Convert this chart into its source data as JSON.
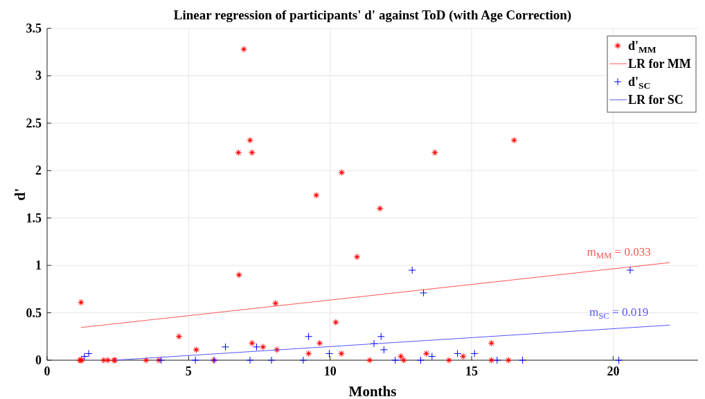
{
  "chart_data": {
    "type": "scatter",
    "title": "Linear regression of participants' d' against ToD (with Age Correction)",
    "xlabel": "Months",
    "ylabel": "d'",
    "xlim": [
      0,
      23
    ],
    "xticks": [
      0,
      5,
      10,
      15,
      20
    ],
    "ylim": [
      0,
      3.5
    ],
    "yticks": [
      0,
      0.5,
      1,
      1.5,
      2,
      2.5,
      3,
      3.5
    ],
    "grid": true,
    "legend": "top right",
    "series": [
      {
        "name": "d'$_{MM}$",
        "marker": "star",
        "color": "#ff0000",
        "x": [
          1.2,
          1.15,
          1.2,
          1.22,
          2.0,
          2.15,
          2.37,
          2.4,
          3.5,
          3.95,
          5.9,
          4.66,
          5.27,
          6.78,
          7.24,
          7.63,
          8.07,
          8.12,
          9.24,
          9.63,
          10.2,
          10.4,
          11.4,
          12.5,
          12.6,
          13.4,
          14.2,
          14.7,
          15.7,
          15.7,
          16.3,
          6.95,
          7.17,
          6.76,
          7.24,
          10.41,
          9.51,
          11.76,
          10.95,
          13.7,
          16.5
        ],
        "values": [
          0.61,
          0,
          0,
          0,
          0,
          0,
          0,
          0,
          0,
          0,
          0,
          0.25,
          0.11,
          0.9,
          0.18,
          0.14,
          0.6,
          0.11,
          0.07,
          0.18,
          0.4,
          0.07,
          0,
          0.04,
          0,
          0.07,
          0,
          0.04,
          0.18,
          0,
          0,
          3.28,
          2.32,
          2.19,
          2.19,
          1.98,
          1.74,
          1.6,
          1.09,
          2.19,
          2.32
        ]
      },
      {
        "name": "LR for MM",
        "type": "line",
        "marker": "none",
        "color": "#ff5555",
        "x": [
          1.2,
          22
        ],
        "values": [
          0.345,
          1.03
        ]
      },
      {
        "name": "d'$_{SC}$",
        "marker": "cross",
        "color": "#0000ff",
        "x": [
          1.32,
          1.47,
          4.03,
          5.24,
          5.9,
          6.3,
          7.17,
          7.4,
          7.93,
          9.05,
          9.24,
          9.97,
          11.55,
          11.8,
          11.9,
          12.3,
          12.9,
          13.2,
          13.3,
          13.6,
          14.5,
          15.1,
          15.9,
          16.8,
          20.2,
          20.6
        ],
        "values": [
          0.04,
          0.07,
          0,
          0,
          0,
          0.14,
          0,
          0.14,
          0,
          0,
          0.25,
          0.07,
          0.175,
          0.25,
          0.11,
          0,
          0.95,
          0,
          0.71,
          0.04,
          0.07,
          0.07,
          0,
          0,
          0,
          0.95
        ]
      },
      {
        "name": "LR for SC",
        "type": "line",
        "marker": "none",
        "color": "#5555ff",
        "x": [
          2.37,
          22
        ],
        "values": [
          0,
          0.37
        ]
      }
    ],
    "annotations": [
      "m$_{MM}$ = 0.033",
      "m$_{SC}$ = 0.019"
    ]
  }
}
